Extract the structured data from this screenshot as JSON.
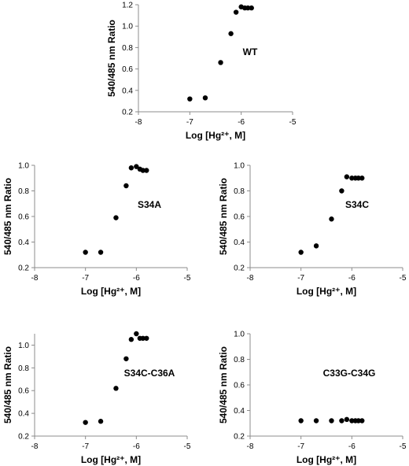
{
  "chart_data": [
    {
      "type": "scatter",
      "label": "WT",
      "xlabel": "Log [Hg²⁺, M]",
      "ylabel": "540/485 nm Ratio",
      "xlim": [
        -8,
        -5
      ],
      "ylim": [
        0.2,
        1.2
      ],
      "xticks": [
        "-8",
        "-7",
        "-6",
        "-5"
      ],
      "yticks": [
        "0.2",
        "0.4",
        "0.6",
        "0.8",
        "1.0",
        "1.2"
      ],
      "x": [
        -7.0,
        -6.7,
        -6.4,
        -6.2,
        -6.1,
        -6.0,
        -5.93,
        -5.87,
        -5.8
      ],
      "y": [
        0.32,
        0.33,
        0.66,
        0.93,
        1.13,
        1.18,
        1.17,
        1.17,
        1.17
      ]
    },
    {
      "type": "scatter",
      "label": "S34A",
      "xlabel": "Log [Hg²⁺, M]",
      "ylabel": "540/485 nm Ratio",
      "xlim": [
        -8,
        -5
      ],
      "ylim": [
        0.2,
        1.0
      ],
      "xticks": [
        "-8",
        "-7",
        "-6",
        "-5"
      ],
      "yticks": [
        "0.2",
        "0.4",
        "0.6",
        "0.8",
        "1.0"
      ],
      "x": [
        -7.0,
        -6.7,
        -6.4,
        -6.2,
        -6.1,
        -6.0,
        -5.93,
        -5.87,
        -5.8
      ],
      "y": [
        0.32,
        0.32,
        0.59,
        0.84,
        0.98,
        0.99,
        0.97,
        0.96,
        0.96
      ]
    },
    {
      "type": "scatter",
      "label": "S34C",
      "xlabel": "Log [Hg²⁺, M]",
      "ylabel": "540/485 nm Ratio",
      "xlim": [
        -8,
        -5
      ],
      "ylim": [
        0.2,
        1.0
      ],
      "xticks": [
        "-8",
        "-7",
        "-6",
        "-5"
      ],
      "yticks": [
        "0.2",
        "0.4",
        "0.6",
        "0.8",
        "1.0"
      ],
      "x": [
        -7.0,
        -6.7,
        -6.4,
        -6.2,
        -6.1,
        -6.0,
        -5.93,
        -5.87,
        -5.8
      ],
      "y": [
        0.32,
        0.37,
        0.58,
        0.8,
        0.91,
        0.9,
        0.9,
        0.9,
        0.9
      ]
    },
    {
      "type": "scatter",
      "label": "S34C-C36A",
      "xlabel": "Log [Hg²⁺, M]",
      "ylabel": "540/485 nm Ratio",
      "xlim": [
        -8,
        -5
      ],
      "ylim": [
        0.2,
        1.1
      ],
      "xticks": [
        "-8",
        "-7",
        "-6",
        "-5"
      ],
      "yticks": [
        "0.2",
        "0.4",
        "0.6",
        "0.8",
        "1.0"
      ],
      "x": [
        -7.0,
        -6.7,
        -6.4,
        -6.2,
        -6.1,
        -6.0,
        -5.93,
        -5.87,
        -5.8
      ],
      "y": [
        0.32,
        0.33,
        0.62,
        0.88,
        1.05,
        1.1,
        1.06,
        1.06,
        1.06
      ]
    },
    {
      "type": "scatter",
      "label": "C33G-C34G",
      "xlabel": "Log [Hg²⁺, M]",
      "ylabel": "540/485 nm Ratio",
      "xlim": [
        -8,
        -5
      ],
      "ylim": [
        0.2,
        1.0
      ],
      "xticks": [
        "-8",
        "-7",
        "-6",
        "-5"
      ],
      "yticks": [
        "0.2",
        "0.4",
        "0.6",
        "0.8",
        "1.0"
      ],
      "x": [
        -7.0,
        -6.7,
        -6.4,
        -6.2,
        -6.1,
        -6.0,
        -5.93,
        -5.87,
        -5.8
      ],
      "y": [
        0.32,
        0.32,
        0.32,
        0.32,
        0.33,
        0.32,
        0.32,
        0.32,
        0.32
      ]
    }
  ]
}
